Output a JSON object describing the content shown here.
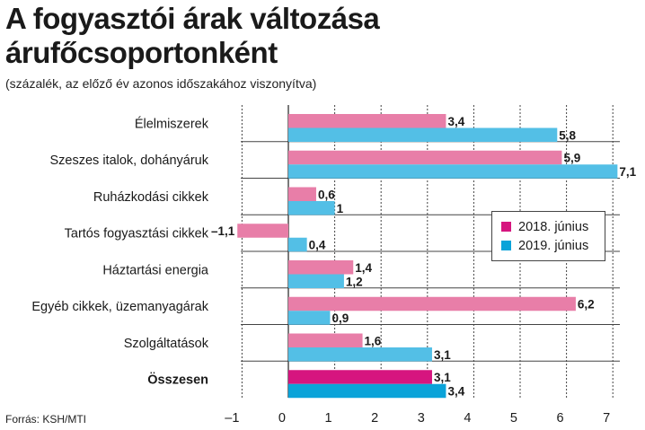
{
  "header": {
    "title_line1": "A fogyasztói árak változása",
    "title_line2": "árufőcsoportonként",
    "subtitle": "(százalék, az előző év azonos időszakához viszonyítva)"
  },
  "footer": {
    "source": "Forrás: KSH/MTI"
  },
  "colors": {
    "series_2018": "#e87ea8",
    "series_2019": "#53bfe6",
    "total_2018": "#d6157f",
    "total_2019": "#0aa3d9",
    "grid": "#444444"
  },
  "chart_data": {
    "type": "bar",
    "orientation": "horizontal",
    "categories": [
      "Élelmiszerek",
      "Szeszes italok, dohányáruk",
      "Ruházkodási cikkek",
      "Tartós fogyasztási cikkek",
      "Háztartási energia",
      "Egyéb cikkek, üzemanyagárak",
      "Szolgáltatások",
      "Összesen"
    ],
    "series": [
      {
        "name": "2018. június",
        "values": [
          3.4,
          5.9,
          0.6,
          -1.1,
          1.4,
          6.2,
          1.6,
          3.1
        ]
      },
      {
        "name": "2019. június",
        "values": [
          5.8,
          7.1,
          1,
          0.4,
          1.2,
          0.9,
          3.1,
          3.4
        ]
      }
    ],
    "value_labels": [
      [
        "3,4",
        "5,9",
        "0,6",
        "–1,1",
        "1,4",
        "6,2",
        "1,6",
        "3,1"
      ],
      [
        "5,8",
        "7,1",
        "1",
        "0,4",
        "1,2",
        "0,9",
        "3,1",
        "3,4"
      ]
    ],
    "x_ticks": [
      -1,
      0,
      1,
      2,
      3,
      4,
      5,
      6,
      7
    ],
    "x_tick_labels": [
      "–1",
      "0",
      "1",
      "2",
      "3",
      "4",
      "5",
      "6",
      "7"
    ],
    "xlim": [
      -1,
      7
    ],
    "grid": true,
    "legend_position": "right",
    "highlighted_category": "Összesen"
  }
}
